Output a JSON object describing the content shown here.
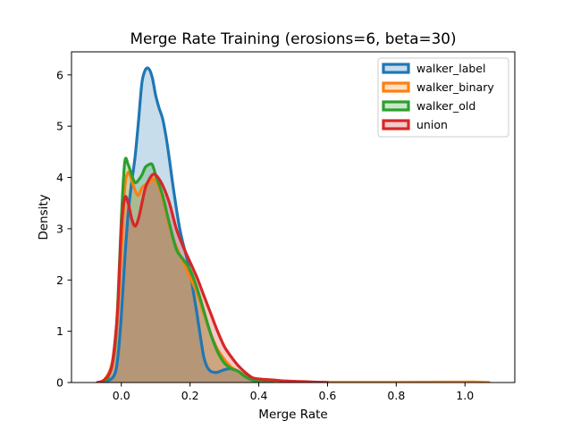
{
  "chart_data": {
    "type": "area",
    "title": "Merge Rate Training (erosions=6, beta=30)",
    "xlabel": "Merge Rate",
    "ylabel": "Density",
    "xlim": [
      -0.145,
      1.145
    ],
    "ylim": [
      0,
      6.45
    ],
    "x_ticks": [
      0.0,
      0.2,
      0.4,
      0.6,
      0.8,
      1.0
    ],
    "x_tick_labels": [
      "0.0",
      "0.2",
      "0.4",
      "0.6",
      "0.8",
      "1.0"
    ],
    "y_ticks": [
      0,
      1,
      2,
      3,
      4,
      5,
      6
    ],
    "y_tick_labels": [
      "0",
      "1",
      "2",
      "3",
      "4",
      "5",
      "6"
    ],
    "grid": false,
    "legend_position": "top-right",
    "series": [
      {
        "name": "walker_label",
        "color": "#1f77b4",
        "points": [
          [
            -0.06,
            0
          ],
          [
            -0.04,
            0.03
          ],
          [
            -0.02,
            0.15
          ],
          [
            -0.01,
            0.5
          ],
          [
            0.0,
            1.3
          ],
          [
            0.01,
            2.4
          ],
          [
            0.02,
            3.3
          ],
          [
            0.03,
            3.9
          ],
          [
            0.04,
            4.4
          ],
          [
            0.05,
            5.1
          ],
          [
            0.06,
            5.85
          ],
          [
            0.07,
            6.1
          ],
          [
            0.08,
            6.12
          ],
          [
            0.09,
            5.95
          ],
          [
            0.1,
            5.6
          ],
          [
            0.11,
            5.35
          ],
          [
            0.12,
            5.15
          ],
          [
            0.13,
            4.8
          ],
          [
            0.14,
            4.35
          ],
          [
            0.15,
            3.85
          ],
          [
            0.16,
            3.4
          ],
          [
            0.17,
            3.0
          ],
          [
            0.18,
            2.7
          ],
          [
            0.19,
            2.45
          ],
          [
            0.2,
            2.15
          ],
          [
            0.21,
            1.75
          ],
          [
            0.22,
            1.35
          ],
          [
            0.23,
            0.9
          ],
          [
            0.24,
            0.5
          ],
          [
            0.25,
            0.3
          ],
          [
            0.26,
            0.22
          ],
          [
            0.27,
            0.2
          ],
          [
            0.28,
            0.2
          ],
          [
            0.3,
            0.25
          ],
          [
            0.32,
            0.27
          ],
          [
            0.34,
            0.22
          ],
          [
            0.36,
            0.12
          ],
          [
            0.38,
            0.05
          ],
          [
            0.4,
            0.02
          ],
          [
            0.44,
            0
          ]
        ]
      },
      {
        "name": "walker_binary",
        "color": "#ff7f0e",
        "points": [
          [
            -0.07,
            0
          ],
          [
            -0.05,
            0.05
          ],
          [
            -0.03,
            0.3
          ],
          [
            -0.02,
            0.7
          ],
          [
            -0.01,
            1.4
          ],
          [
            0.0,
            2.6
          ],
          [
            0.01,
            3.8
          ],
          [
            0.02,
            4.1
          ],
          [
            0.03,
            3.95
          ],
          [
            0.04,
            3.75
          ],
          [
            0.05,
            3.65
          ],
          [
            0.06,
            3.8
          ],
          [
            0.08,
            3.9
          ],
          [
            0.1,
            3.95
          ],
          [
            0.12,
            3.6
          ],
          [
            0.14,
            3.05
          ],
          [
            0.16,
            2.65
          ],
          [
            0.18,
            2.35
          ],
          [
            0.2,
            2.05
          ],
          [
            0.22,
            1.75
          ],
          [
            0.24,
            1.35
          ],
          [
            0.26,
            0.95
          ],
          [
            0.28,
            0.65
          ],
          [
            0.3,
            0.45
          ],
          [
            0.32,
            0.3
          ],
          [
            0.34,
            0.22
          ],
          [
            0.36,
            0.14
          ],
          [
            0.38,
            0.06
          ],
          [
            0.4,
            0.04
          ],
          [
            0.45,
            0.02
          ],
          [
            0.5,
            0.01
          ],
          [
            0.6,
            0.005
          ],
          [
            0.8,
            0.005
          ],
          [
            1.0,
            0.01
          ],
          [
            1.03,
            0.01
          ],
          [
            1.07,
            0
          ]
        ]
      },
      {
        "name": "walker_old",
        "color": "#2ca02c",
        "points": [
          [
            -0.06,
            0
          ],
          [
            -0.04,
            0.08
          ],
          [
            -0.02,
            0.6
          ],
          [
            -0.01,
            1.6
          ],
          [
            0.0,
            3.2
          ],
          [
            0.01,
            4.3
          ],
          [
            0.02,
            4.25
          ],
          [
            0.03,
            4.05
          ],
          [
            0.04,
            3.9
          ],
          [
            0.05,
            3.95
          ],
          [
            0.06,
            4.05
          ],
          [
            0.07,
            4.2
          ],
          [
            0.08,
            4.25
          ],
          [
            0.09,
            4.25
          ],
          [
            0.1,
            4.05
          ],
          [
            0.12,
            3.65
          ],
          [
            0.14,
            3.1
          ],
          [
            0.16,
            2.6
          ],
          [
            0.18,
            2.4
          ],
          [
            0.2,
            2.2
          ],
          [
            0.22,
            1.85
          ],
          [
            0.24,
            1.4
          ],
          [
            0.26,
            0.95
          ],
          [
            0.28,
            0.6
          ],
          [
            0.3,
            0.38
          ],
          [
            0.32,
            0.27
          ],
          [
            0.34,
            0.22
          ],
          [
            0.36,
            0.12
          ],
          [
            0.38,
            0.05
          ],
          [
            0.4,
            0.02
          ],
          [
            0.44,
            0
          ]
        ]
      },
      {
        "name": "union",
        "color": "#d62728",
        "points": [
          [
            -0.07,
            0
          ],
          [
            -0.05,
            0.05
          ],
          [
            -0.03,
            0.25
          ],
          [
            -0.02,
            0.7
          ],
          [
            -0.01,
            1.5
          ],
          [
            0.0,
            3.0
          ],
          [
            0.01,
            3.6
          ],
          [
            0.02,
            3.5
          ],
          [
            0.03,
            3.2
          ],
          [
            0.04,
            3.05
          ],
          [
            0.05,
            3.2
          ],
          [
            0.06,
            3.5
          ],
          [
            0.07,
            3.8
          ],
          [
            0.08,
            3.95
          ],
          [
            0.09,
            4.05
          ],
          [
            0.1,
            4.05
          ],
          [
            0.12,
            3.85
          ],
          [
            0.14,
            3.5
          ],
          [
            0.16,
            3.0
          ],
          [
            0.18,
            2.65
          ],
          [
            0.2,
            2.35
          ],
          [
            0.22,
            2.05
          ],
          [
            0.24,
            1.7
          ],
          [
            0.26,
            1.35
          ],
          [
            0.28,
            1.0
          ],
          [
            0.3,
            0.7
          ],
          [
            0.32,
            0.5
          ],
          [
            0.34,
            0.33
          ],
          [
            0.36,
            0.2
          ],
          [
            0.38,
            0.1
          ],
          [
            0.4,
            0.07
          ],
          [
            0.44,
            0.05
          ],
          [
            0.48,
            0.03
          ],
          [
            0.52,
            0.02
          ],
          [
            0.56,
            0.01
          ],
          [
            0.6,
            0
          ]
        ]
      }
    ]
  }
}
